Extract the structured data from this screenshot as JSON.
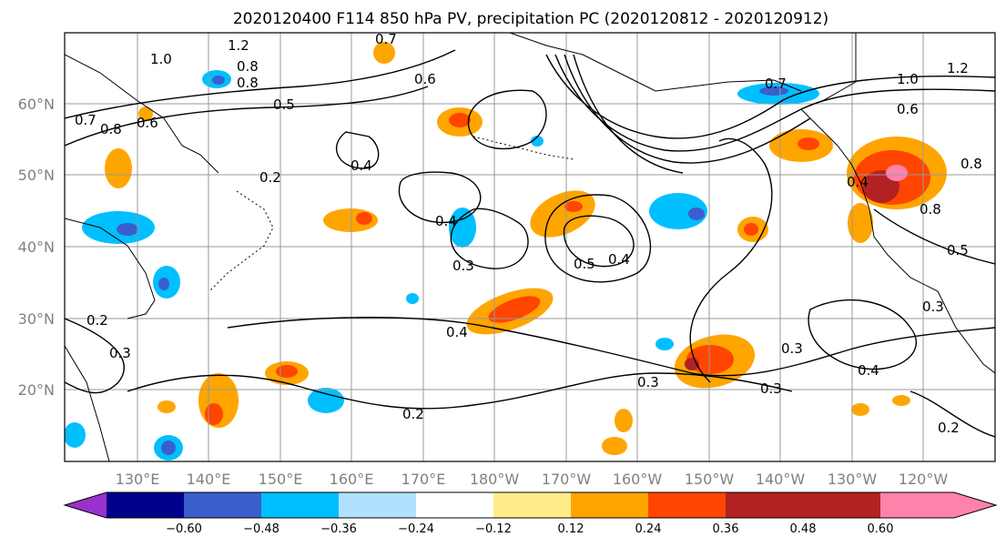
{
  "title": "2020120400 F114 850 hPa PV, precipitation PC (2020120812 - 2020120912)",
  "lat_labels": [
    "60°N",
    "50°N",
    "40°N",
    "30°N",
    "20°N"
  ],
  "lon_labels": [
    "130°E",
    "140°E",
    "150°E",
    "160°E",
    "170°E",
    "180°W",
    "170°W",
    "160°W",
    "150°W",
    "140°W",
    "130°W",
    "120°W"
  ],
  "colorbar": {
    "colors": [
      "#9932CC",
      "#00008B",
      "#3A5FCD",
      "#00BFFF",
      "#B0E2FF",
      "#FFFFFF",
      "#FFEC8B",
      "#FFA500",
      "#FF4500",
      "#B22222",
      "#FF82AB"
    ],
    "tick_labels": [
      "−0.60",
      "−0.48",
      "−0.36",
      "−0.24",
      "−0.12",
      "0.12",
      "0.24",
      "0.36",
      "0.48",
      "0.60"
    ]
  },
  "contour_labels": [
    "1.0",
    "1.2",
    "0.7",
    "0.8",
    "0.5",
    "0.6",
    "0.8",
    "0.7",
    "0.8",
    "0.6",
    "0.4",
    "0.2",
    "0.4",
    "0.3",
    "0.5",
    "0.4",
    "0.7",
    "1.0",
    "1.2",
    "0.6",
    "0.8",
    "0.4",
    "0.8",
    "0.5",
    "0.3",
    "0.2",
    "0.3",
    "0.4",
    "0.2",
    "0.3",
    "0.3",
    "0.4",
    "0.3",
    "0.2"
  ]
}
